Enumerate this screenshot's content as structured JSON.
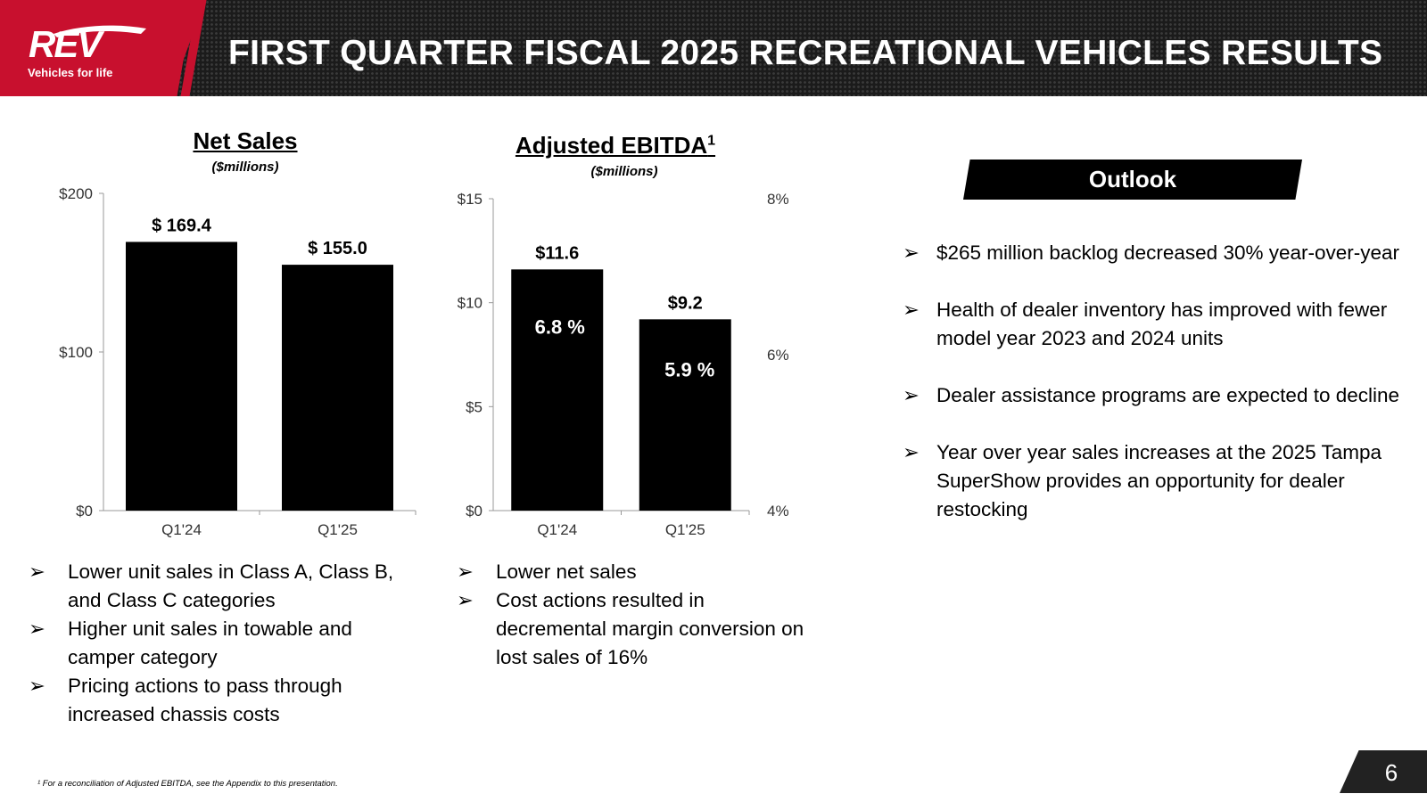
{
  "header": {
    "title": "FIRST QUARTER FISCAL 2025 RECREATIONAL VEHICLES RESULTS",
    "logo_text": "REV",
    "logo_tagline": "Vehicles for life"
  },
  "chart_data": [
    {
      "type": "bar",
      "title": "Net Sales",
      "subtitle": "($millions)",
      "categories": [
        "Q1'24",
        "Q1'25"
      ],
      "values": [
        169.4,
        155.0
      ],
      "value_labels": [
        "$ 169.4",
        "$ 155.0"
      ],
      "ylim": [
        0,
        200
      ],
      "yticks": [
        0,
        100,
        200
      ],
      "ytick_labels": [
        "$0",
        "$100",
        "$200"
      ],
      "grid": false
    },
    {
      "type": "bar",
      "title": "Adjusted EBITDA",
      "title_superscript": "1",
      "subtitle": "($millions)",
      "categories": [
        "Q1'24",
        "Q1'25"
      ],
      "values": [
        11.6,
        9.2
      ],
      "value_labels": [
        "$11.6",
        "$9.2"
      ],
      "margin_labels": [
        "6.8 %",
        "5.9 %"
      ],
      "ylim": [
        0,
        15
      ],
      "yticks": [
        0,
        5,
        10,
        15
      ],
      "ytick_labels": [
        "$0",
        "$5",
        "$10",
        "$15"
      ],
      "y2ticks": [
        4,
        6,
        8
      ],
      "y2tick_labels": [
        "4%",
        "6%",
        "8%"
      ],
      "grid": false
    }
  ],
  "net_sales_bullets": [
    "Lower unit sales in Class A, Class B, and Class C categories",
    "Higher unit sales in towable and camper category",
    "Pricing actions to pass through increased chassis costs"
  ],
  "ebitda_bullets": [
    "Lower net sales",
    "Cost actions resulted in decremental margin conversion on lost sales of 16%"
  ],
  "outlook": {
    "title": "Outlook",
    "items": [
      "$265 million backlog decreased 30% year-over-year",
      "Health of dealer inventory has improved with fewer model year 2023 and 2024 units",
      "Dealer assistance programs are expected to decline",
      "Year over year sales increases at the 2025 Tampa SuperShow provides an opportunity for dealer restocking"
    ]
  },
  "footnote": "¹ For a reconciliation of Adjusted EBITDA, see the Appendix to this presentation.",
  "page_number": "6",
  "bullet_glyph": "➢",
  "colors": {
    "brand_red": "#c8102e",
    "bar": "#000000",
    "header_bg": "#1b1b1b"
  }
}
